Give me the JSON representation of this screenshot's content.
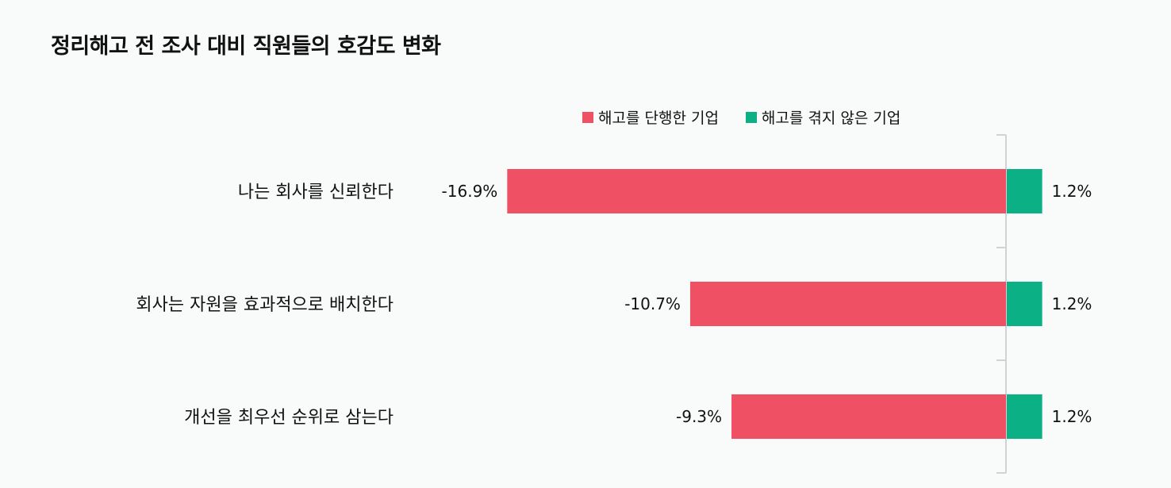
{
  "chart_data": {
    "type": "bar",
    "orientation": "horizontal",
    "title": "정리해고 전 조사 대비 직원들의 호감도 변화",
    "categories": [
      "나는 회사를 신뢰한다",
      "회사는 자원을 효과적으로 배치한다",
      "개선을 최우선 순위로 삼는다"
    ],
    "series": [
      {
        "name": "해고를 단행한 기업",
        "values": [
          -16.9,
          -10.7,
          -9.3
        ],
        "labels": [
          "-16.9%",
          "-10.7%",
          "-9.3%"
        ],
        "color": "#ef5064"
      },
      {
        "name": "해고를 겪지 않은 기업",
        "values": [
          1.2,
          1.2,
          1.2
        ],
        "labels": [
          "1.2%",
          "1.2%",
          "1.2%"
        ],
        "color": "#0bb084"
      }
    ],
    "unit": "%",
    "legend_position": "top"
  }
}
